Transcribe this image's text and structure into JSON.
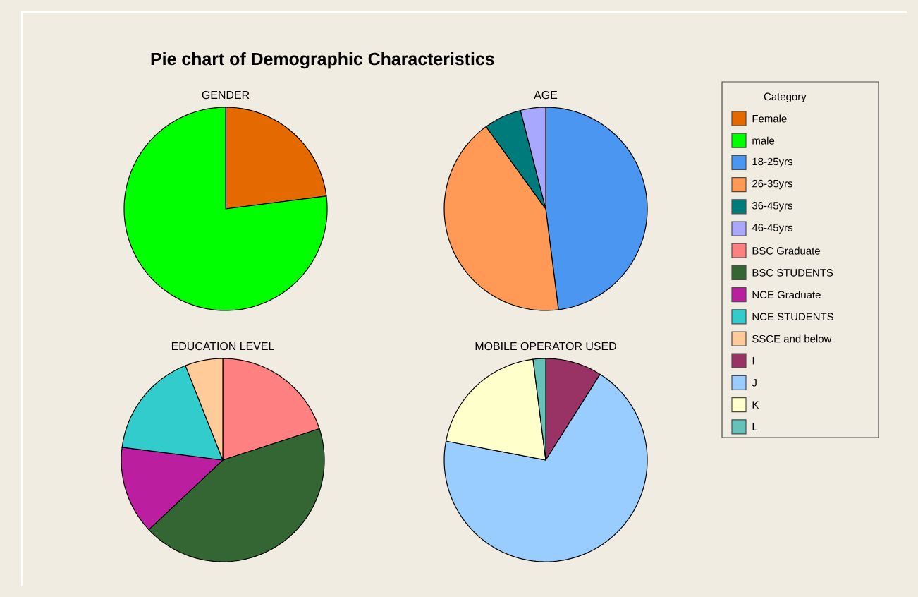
{
  "chart_data": [
    {
      "type": "pie",
      "title": "Pie chart of Demographic Characteristics",
      "subtitle": "GENDER",
      "legend_title": "Category",
      "legend": "right",
      "categories": [
        "Female",
        "male"
      ],
      "values": [
        23,
        77
      ],
      "colors": [
        "#e46a00",
        "#00ff00"
      ]
    },
    {
      "type": "pie",
      "subtitle": "AGE",
      "legend": "right",
      "categories": [
        "18-25yrs",
        "26-35yrs",
        "36-45yrs",
        "46-45yrs"
      ],
      "values": [
        48,
        42,
        6,
        4
      ],
      "colors": [
        "#4a96f0",
        "#ff9955",
        "#007b7b",
        "#a8a8ff"
      ]
    },
    {
      "type": "pie",
      "subtitle": "EDUCATION LEVEL",
      "legend": "right",
      "categories": [
        "BSC Graduate",
        "BSC STUDENTS",
        "NCE Graduate",
        "NCE STUDENTS",
        "SSCE and below"
      ],
      "values": [
        20,
        43,
        14,
        17,
        6
      ],
      "colors": [
        "#ff8080",
        "#336633",
        "#bb1fa0",
        "#33cccc",
        "#ffcc99"
      ]
    },
    {
      "type": "pie",
      "subtitle": "MOBILE OPERATOR USED",
      "legend": "right",
      "categories": [
        "I",
        "J",
        "K",
        "L"
      ],
      "values": [
        9,
        69,
        20,
        2
      ],
      "colors": [
        "#993366",
        "#99ccff",
        "#ffffcc",
        "#66c2b8"
      ]
    }
  ]
}
